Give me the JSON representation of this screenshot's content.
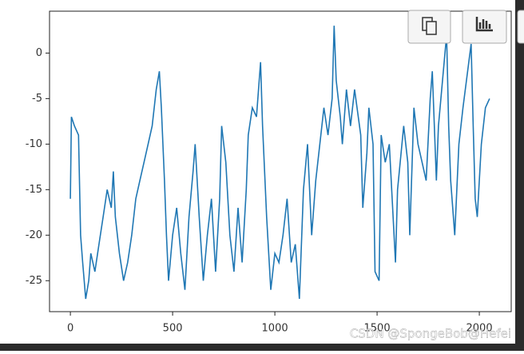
{
  "chart_data": {
    "type": "line",
    "x": [
      0,
      5,
      20,
      40,
      50,
      60,
      75,
      90,
      100,
      120,
      140,
      160,
      180,
      200,
      210,
      220,
      240,
      260,
      280,
      300,
      320,
      340,
      360,
      380,
      400,
      420,
      435,
      445,
      460,
      470,
      480,
      500,
      520,
      540,
      560,
      580,
      600,
      610,
      630,
      650,
      670,
      690,
      710,
      730,
      740,
      760,
      780,
      800,
      820,
      840,
      860,
      870,
      890,
      910,
      930,
      940,
      960,
      980,
      1000,
      1020,
      1040,
      1060,
      1080,
      1100,
      1120,
      1140,
      1160,
      1180,
      1200,
      1220,
      1240,
      1260,
      1280,
      1290,
      1300,
      1320,
      1330,
      1350,
      1370,
      1390,
      1420,
      1430,
      1450,
      1460,
      1480,
      1490,
      1510,
      1520,
      1540,
      1560,
      1590,
      1600,
      1630,
      1650,
      1660,
      1680,
      1700,
      1720,
      1740,
      1760,
      1770,
      1790,
      1800,
      1820,
      1840,
      1850,
      1860,
      1880,
      1900,
      1920,
      1960,
      1970,
      1980,
      1990,
      2010,
      2030,
      2050
    ],
    "series": [
      {
        "color": "#1f77b4",
        "values": [
          -16,
          -7,
          -8,
          -9,
          -20,
          -23,
          -27,
          -25,
          -22,
          -24,
          -21,
          -18,
          -15,
          -17,
          -13,
          -18,
          -22,
          -25,
          -23,
          -20,
          -16,
          -14,
          -12,
          -10,
          -8,
          -4,
          -2,
          -6,
          -14,
          -20,
          -25,
          -20,
          -17,
          -22,
          -26,
          -18,
          -13,
          -10,
          -18,
          -25,
          -20,
          -16,
          -24,
          -16,
          -8,
          -12,
          -20,
          -24,
          -17,
          -23,
          -15,
          -9,
          -6,
          -7,
          -1,
          -8,
          -18,
          -26,
          -22,
          -23,
          -20,
          -16,
          -23,
          -21,
          -27,
          -15,
          -10,
          -20,
          -14,
          -10,
          -6,
          -9,
          -5,
          3,
          -3,
          -7,
          -10,
          -4,
          -8,
          -4,
          -9,
          -17,
          -11,
          -6,
          -10,
          -24,
          -25,
          -9,
          -12,
          -10,
          -23,
          -15,
          -8,
          -12,
          -20,
          -6,
          -10,
          -12,
          -14,
          -5,
          -2,
          -14,
          -8,
          -3,
          2,
          -8,
          -14,
          -20,
          -10,
          -6,
          1,
          -8,
          -16,
          -18,
          -10,
          -6,
          -5
        ]
      }
    ],
    "xlim": [
      -102,
      2156
    ],
    "ylim": [
      -28.4,
      4.6
    ],
    "xticks": [
      0,
      500,
      1000,
      1500,
      2000
    ],
    "yticks": [
      -25,
      -20,
      -15,
      -10,
      -5,
      0
    ]
  },
  "watermark": "CSDN @SpongeBob@Hefei"
}
